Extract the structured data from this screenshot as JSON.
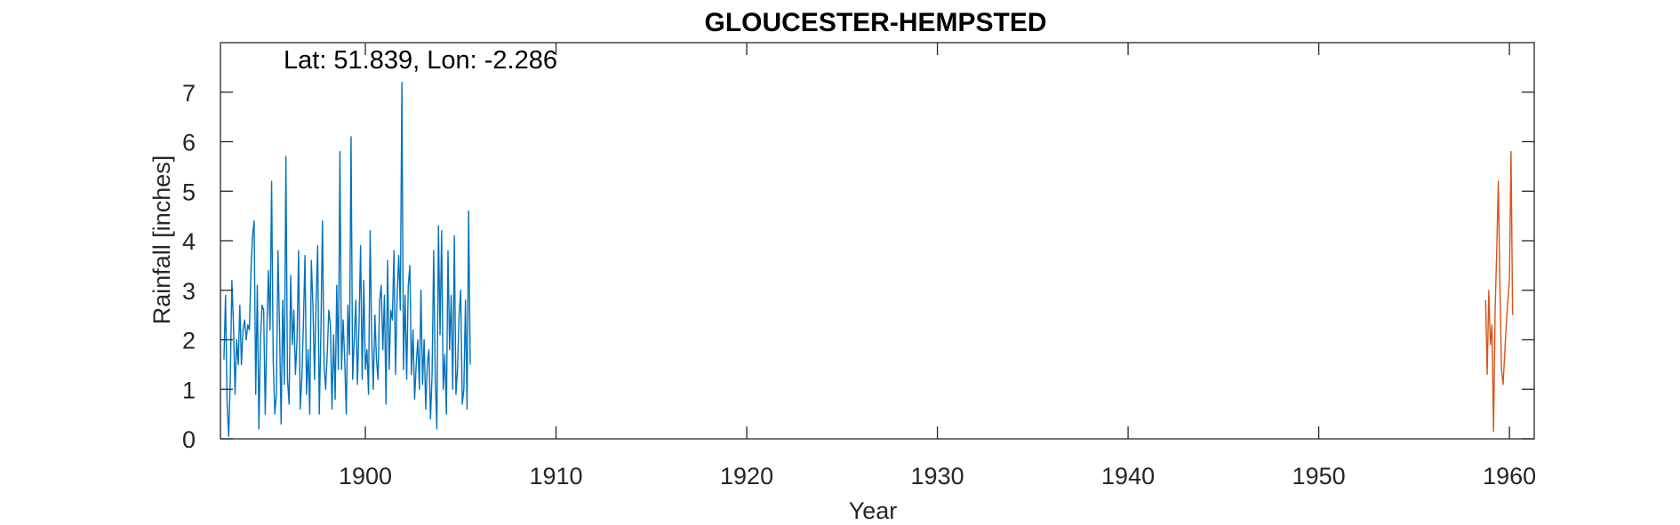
{
  "chart_data": {
    "type": "line",
    "title": "GLOUCESTER-HEMPSTED",
    "xlabel": "Year",
    "ylabel": "Rainfall [inches]",
    "annotation": "Lat: 51.839, Lon: -2.286",
    "xlim": [
      1892.4,
      1961.3
    ],
    "ylim": [
      0,
      8
    ],
    "xticks": [
      1900,
      1910,
      1920,
      1930,
      1940,
      1950,
      1960
    ],
    "yticks": [
      0,
      1,
      2,
      3,
      4,
      5,
      6,
      7
    ],
    "grid": false,
    "colors": {
      "series1": "#0072BD",
      "series2": "#D95319",
      "axis": "#262626"
    },
    "series": [
      {
        "x_start": 1892.5833,
        "x_step": 0.08333,
        "values": [
          1.6,
          2.9,
          0.7,
          0.05,
          1.2,
          3.2,
          2.3,
          0.9,
          2.0,
          1.5,
          2.7,
          1.5,
          2.2,
          2.4,
          2.0,
          2.3,
          2.2,
          3.4,
          4.1,
          4.4,
          0.9,
          3.1,
          0.2,
          2.0,
          2.7,
          2.6,
          0.5,
          2.2,
          3.4,
          2.2,
          5.2,
          1.6,
          0.5,
          0.9,
          3.8,
          2.2,
          0.3,
          2.8,
          1.1,
          5.7,
          1.2,
          0.7,
          3.3,
          1.9,
          2.6,
          1.3,
          2.0,
          3.8,
          0.6,
          1.2,
          2.3,
          3.7,
          0.9,
          1.8,
          0.5,
          3.6,
          2.7,
          1.2,
          2.8,
          3.9,
          0.5,
          2.1,
          4.4,
          1.5,
          1.0,
          1.7,
          2.6,
          2.3,
          0.6,
          2.1,
          0.8,
          3.1,
          1.4,
          5.8,
          1.4,
          2.4,
          1.6,
          0.5,
          2.7,
          1.7,
          6.1,
          1.2,
          2.0,
          2.8,
          1.1,
          2.3,
          3.9,
          1.2,
          3.2,
          1.4,
          1.8,
          0.9,
          4.2,
          2.0,
          1.0,
          2.5,
          1.6,
          1.2,
          2.8,
          3.1,
          1.8,
          2.9,
          0.7,
          3.6,
          1.4,
          2.6,
          2.4,
          3.8,
          1.3,
          2.9,
          3.7,
          2.6,
          7.2,
          1.4,
          2.9,
          1.2,
          3.1,
          3.5,
          1.3,
          2.2,
          0.8,
          1.5,
          2.0,
          1.0,
          3.0,
          1.1,
          2.0,
          0.6,
          1.5,
          1.8,
          0.4,
          1.3,
          3.8,
          1.2,
          0.2,
          4.3,
          2.1,
          4.2,
          1.0,
          1.7,
          0.5,
          3.8,
          1.8,
          2.9,
          1.0,
          4.1,
          0.9,
          1.4,
          2.5,
          3.0,
          0.7,
          1.0,
          2.8,
          0.6,
          4.6,
          1.5
        ]
      },
      {
        "x_start": 1958.75,
        "x_step": 0.08333,
        "values": [
          2.8,
          1.3,
          3.0,
          1.9,
          2.3,
          0.15,
          2.6,
          3.8,
          5.2,
          3.1,
          1.4,
          1.1,
          1.7,
          2.3,
          2.8,
          3.2,
          5.8,
          2.5
        ]
      }
    ]
  }
}
